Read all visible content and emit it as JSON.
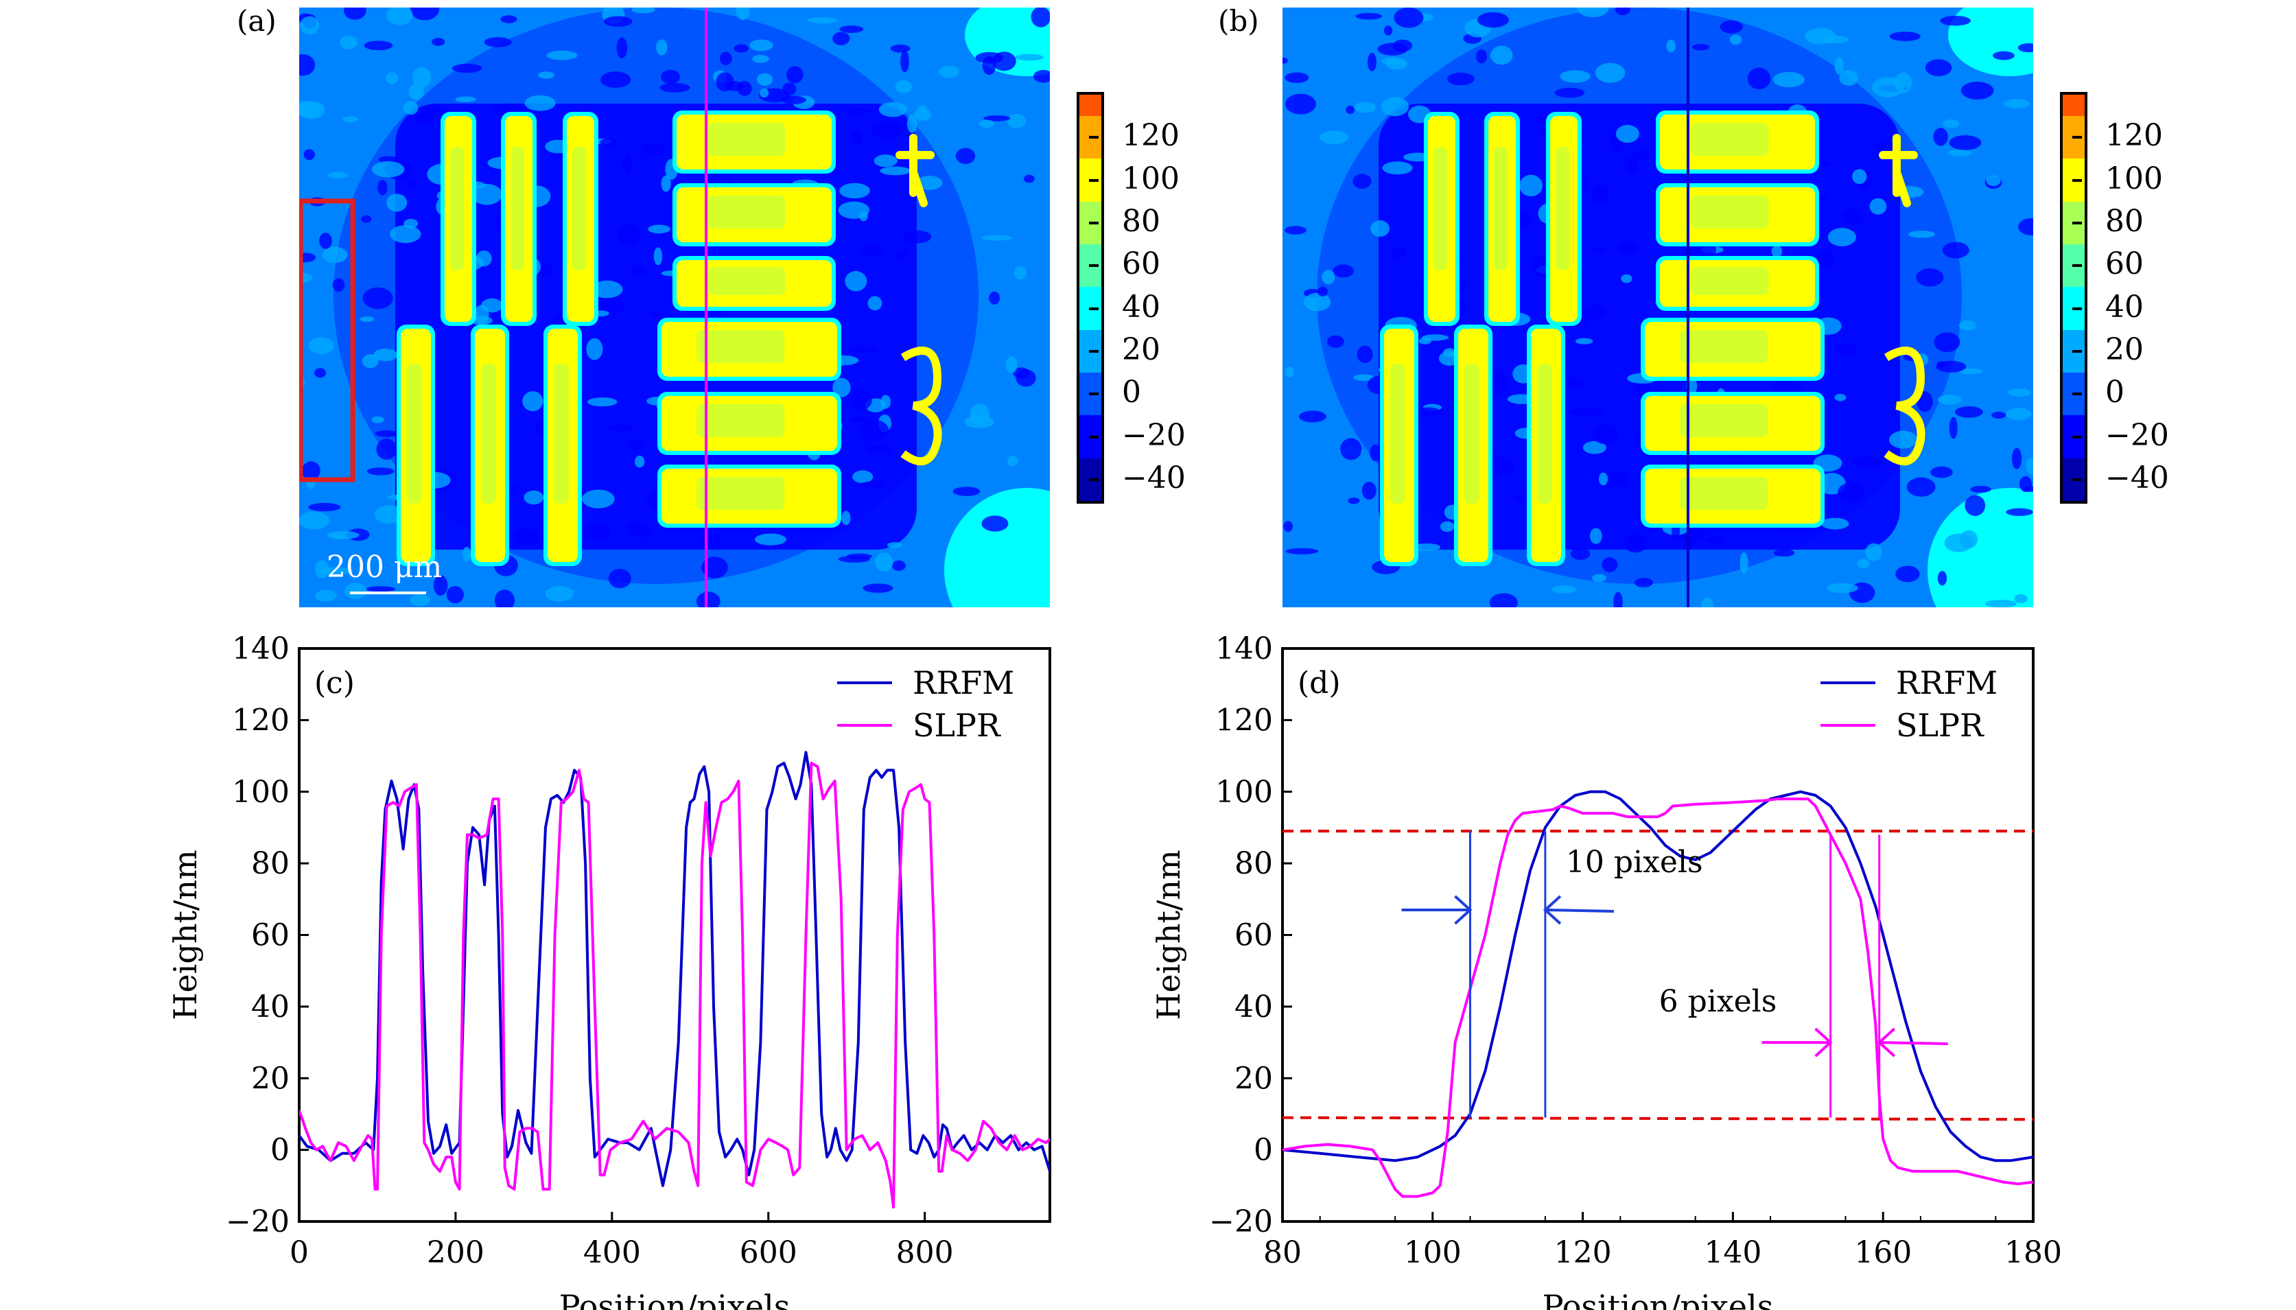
{
  "figure": {
    "panels": {
      "a": {
        "label": "(a)",
        "scale_bar": "200 μm",
        "profile_line_color": "#ff00ff",
        "roi_box_color": "#e02020"
      },
      "b": {
        "label": "(b)",
        "profile_line_color": "#0a00c8"
      },
      "c": {
        "label": "(c)"
      },
      "d": {
        "label": "(d)",
        "annot_rrfm": "10 pixels",
        "annot_slpr": "6 pixels"
      }
    },
    "colorbar": {
      "ticks": [
        "120",
        "100",
        "80",
        "60",
        "40",
        "20",
        "0",
        "−20",
        "−40"
      ],
      "levels": [
        {
          "min": 130,
          "max": 140,
          "color": "#ff5500"
        },
        {
          "min": 110,
          "max": 130,
          "color": "#ffaa00"
        },
        {
          "min": 90,
          "max": 110,
          "color": "#ffff00"
        },
        {
          "min": 70,
          "max": 90,
          "color": "#aaff55"
        },
        {
          "min": 50,
          "max": 70,
          "color": "#55ffaa"
        },
        {
          "min": 30,
          "max": 50,
          "color": "#00ffff"
        },
        {
          "min": 10,
          "max": 30,
          "color": "#00aaff"
        },
        {
          "min": -10,
          "max": 10,
          "color": "#0055ff"
        },
        {
          "min": -30,
          "max": -10,
          "color": "#0000ff"
        },
        {
          "min": -50,
          "max": -30,
          "color": "#0000aa"
        }
      ],
      "range": [
        -50,
        140
      ]
    }
  },
  "chart_data": [
    {
      "id": "c",
      "type": "line",
      "title": "",
      "xlabel": "Position/pixels",
      "ylabel": "Height/nm",
      "xlim": [
        0,
        960
      ],
      "ylim": [
        -20,
        140
      ],
      "xticks": [
        0,
        200,
        400,
        600,
        800
      ],
      "yticks": [
        -20,
        0,
        20,
        40,
        60,
        80,
        100,
        120,
        140
      ],
      "xtick_labels": [
        "0",
        "200",
        "400",
        "600",
        "800"
      ],
      "ytick_labels": [
        "−20",
        "0",
        "20",
        "40",
        "60",
        "80",
        "100",
        "120",
        "140"
      ],
      "legend": {
        "position": "top-right",
        "entries": [
          "RRFM",
          "SLPR"
        ]
      },
      "series": [
        {
          "name": "RRFM",
          "color": "#0000cc",
          "x": [
            0,
            10,
            25,
            40,
            55,
            70,
            85,
            95,
            100,
            105,
            110,
            118,
            125,
            133,
            140,
            147,
            153,
            158,
            165,
            172,
            180,
            188,
            195,
            205,
            210,
            215,
            222,
            230,
            237,
            243,
            250,
            255,
            260,
            266,
            272,
            280,
            290,
            297,
            305,
            315,
            322,
            330,
            338,
            345,
            352,
            360,
            366,
            372,
            378,
            385,
            395,
            410,
            420,
            435,
            450,
            465,
            475,
            485,
            495,
            500,
            505,
            512,
            518,
            524,
            530,
            537,
            545,
            552,
            560,
            567,
            575,
            582,
            590,
            598,
            605,
            612,
            620,
            627,
            635,
            641,
            648,
            655,
            661,
            668,
            675,
            680,
            686,
            692,
            700,
            707,
            715,
            722,
            730,
            738,
            745,
            752,
            760,
            767,
            775,
            782,
            790,
            798,
            805,
            812,
            818,
            823,
            828,
            835,
            842,
            850,
            860,
            870,
            880,
            890,
            900,
            910,
            920,
            930,
            940,
            950,
            960
          ],
          "y": [
            4,
            1,
            0,
            -3,
            -1,
            -1,
            2,
            0,
            20,
            75,
            95,
            103,
            98,
            84,
            98,
            102,
            95,
            50,
            8,
            -1,
            1,
            7,
            -1,
            2,
            40,
            80,
            90,
            88,
            74,
            92,
            96,
            60,
            10,
            -2,
            1,
            11,
            2,
            -1,
            40,
            90,
            98,
            99,
            97,
            100,
            106,
            104,
            80,
            20,
            -2,
            0,
            3,
            2,
            2,
            0,
            6,
            -10,
            0,
            30,
            90,
            97,
            98,
            105,
            107,
            100,
            40,
            5,
            -2,
            0,
            3,
            0,
            -7,
            0,
            30,
            95,
            100,
            107,
            108,
            104,
            98,
            102,
            111,
            102,
            60,
            10,
            -2,
            0,
            6,
            0,
            -3,
            0,
            30,
            95,
            104,
            106,
            104,
            106,
            106,
            90,
            30,
            0,
            -1,
            4,
            2,
            -2,
            0,
            7,
            6,
            0,
            2,
            4,
            0,
            2,
            0,
            4,
            2,
            4,
            0,
            2,
            0,
            1,
            -6
          ],
          "y_note": "digitized approximate"
        },
        {
          "name": "SLPR",
          "color": "#ff00ff",
          "x": [
            0,
            8,
            15,
            22,
            30,
            40,
            50,
            60,
            70,
            80,
            88,
            93,
            97,
            100,
            105,
            112,
            120,
            128,
            135,
            142,
            150,
            155,
            160,
            165,
            172,
            180,
            188,
            195,
            200,
            205,
            210,
            215,
            222,
            230,
            240,
            248,
            255,
            260,
            263,
            268,
            275,
            282,
            290,
            298,
            305,
            312,
            320,
            327,
            335,
            342,
            350,
            358,
            364,
            370,
            378,
            385,
            390,
            398,
            410,
            425,
            440,
            455,
            470,
            485,
            498,
            505,
            510,
            515,
            520,
            526,
            533,
            540,
            548,
            555,
            562,
            567,
            572,
            580,
            590,
            600,
            610,
            618,
            625,
            632,
            640,
            648,
            655,
            663,
            670,
            678,
            685,
            693,
            700,
            710,
            720,
            730,
            740,
            750,
            756,
            760,
            765,
            772,
            780,
            788,
            795,
            800,
            806,
            812,
            818,
            822,
            828,
            835,
            845,
            855,
            865,
            875,
            885,
            895,
            905,
            915,
            925,
            935,
            945,
            955,
            960
          ],
          "y": [
            11,
            6,
            2,
            0,
            1,
            -3,
            2,
            1,
            -3,
            1,
            4,
            3,
            -11,
            -11,
            60,
            96,
            97,
            96,
            100,
            101,
            102,
            60,
            2,
            0,
            -4,
            -6,
            -2,
            -2,
            -9,
            -11,
            60,
            88,
            88,
            87,
            88,
            98,
            98,
            60,
            -5,
            -10,
            -11,
            5,
            6,
            6,
            5,
            -11,
            -11,
            60,
            97,
            98,
            100,
            106,
            98,
            97,
            40,
            -7,
            -7,
            0,
            2,
            3,
            8,
            3,
            6,
            5,
            2,
            -6,
            -10,
            80,
            97,
            82,
            90,
            97,
            98,
            100,
            103,
            60,
            -9,
            -10,
            0,
            3,
            2,
            1,
            0,
            -7,
            -5,
            60,
            108,
            107,
            98,
            101,
            103,
            70,
            0,
            3,
            4,
            0,
            2,
            -3,
            -9,
            -16,
            60,
            95,
            100,
            101,
            102,
            98,
            97,
            60,
            -6,
            -6,
            4,
            0,
            -1,
            -3,
            0,
            8,
            6,
            2,
            0,
            4,
            0,
            1,
            3,
            2,
            3
          ],
          "y_note": "digitized approximate"
        }
      ]
    },
    {
      "id": "d",
      "type": "line",
      "title": "",
      "xlabel": "Position/pixels",
      "ylabel": "Height/nm",
      "xlim": [
        80,
        180
      ],
      "ylim": [
        -20,
        140
      ],
      "xticks": [
        80,
        100,
        120,
        140,
        160,
        180
      ],
      "yticks": [
        -20,
        0,
        20,
        40,
        60,
        80,
        100,
        120,
        140
      ],
      "xtick_labels": [
        "80",
        "100",
        "120",
        "140",
        "160",
        "180"
      ],
      "ytick_labels": [
        "−20",
        "0",
        "20",
        "40",
        "60",
        "80",
        "100",
        "120",
        "140"
      ],
      "legend": {
        "position": "top-right",
        "entries": [
          "RRFM",
          "SLPR"
        ]
      },
      "series": [
        {
          "name": "RRFM",
          "color": "#0000cc",
          "x": [
            80,
            85,
            90,
            95,
            98,
            101,
            103,
            105,
            107,
            109,
            111,
            113,
            115,
            117,
            119,
            121,
            123,
            125,
            127,
            129,
            131,
            133,
            135,
            137,
            139,
            141,
            143,
            145,
            147,
            149,
            151,
            153,
            155,
            157,
            159,
            161,
            163,
            165,
            167,
            169,
            171,
            173,
            175,
            177,
            180
          ],
          "y": [
            0,
            -1,
            -2,
            -3,
            -2,
            1,
            4,
            10,
            22,
            40,
            60,
            78,
            90,
            96,
            99,
            100,
            100,
            98,
            94,
            90,
            85,
            82,
            81,
            83,
            87,
            91,
            95,
            98,
            99,
            100,
            99,
            96,
            90,
            80,
            68,
            52,
            36,
            22,
            12,
            5,
            1,
            -2,
            -3,
            -3,
            -2
          ]
        },
        {
          "name": "SLPR",
          "color": "#ff00ff",
          "x": [
            80,
            83,
            86,
            89,
            92,
            93,
            95,
            96,
            98,
            100,
            101,
            102,
            103,
            105,
            107,
            109,
            110,
            111,
            112,
            114,
            116,
            117,
            118,
            120,
            122,
            124,
            126,
            128,
            130,
            131,
            132,
            135,
            140,
            144,
            146,
            150,
            151,
            152,
            153,
            155,
            157,
            158,
            159,
            159.5,
            160,
            161,
            162,
            164,
            168,
            170,
            172,
            174,
            176,
            178,
            180
          ],
          "y": [
            0,
            1,
            1.5,
            1,
            0,
            -3,
            -11,
            -13,
            -13,
            -12,
            -10,
            5,
            30,
            45,
            60,
            80,
            88,
            92,
            94,
            94.5,
            95,
            96,
            95.5,
            94,
            94,
            94,
            93,
            93,
            93,
            94,
            96,
            96.5,
            97,
            97.5,
            98,
            98,
            96,
            92,
            88,
            80,
            70,
            55,
            35,
            15,
            3,
            -3,
            -5,
            -6,
            -6,
            -6,
            -7,
            -8,
            -9,
            -9.5,
            -9
          ]
        }
      ],
      "reference_lines": [
        {
          "y": 89,
          "y_end": 89,
          "style": "dashed",
          "color": "#e00000"
        },
        {
          "y": 9,
          "y_end": 8.5,
          "style": "dashed",
          "color": "#e00000"
        }
      ],
      "annotations": [
        {
          "text": "10 pixels",
          "color": "#2040dd",
          "x_from": 105,
          "x_to": 115,
          "arrow_y": 67
        },
        {
          "text": "6 pixels",
          "color": "#ff00ff",
          "x_from": 153,
          "x_to": 159.5,
          "arrow_y": 30
        }
      ]
    }
  ]
}
